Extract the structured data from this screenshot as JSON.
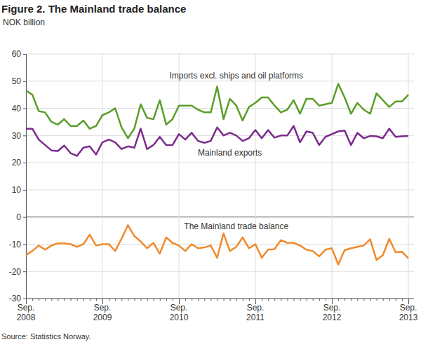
{
  "chart_data": {
    "type": "line",
    "title": "Figure 2. The Mainland trade balance",
    "y_label": "NOK billion",
    "source": "Source: Statistics Norway.",
    "categories": [
      "Sep. 2008",
      null,
      null,
      null,
      null,
      null,
      null,
      null,
      null,
      null,
      null,
      null,
      "Sep. 2009",
      null,
      null,
      null,
      null,
      null,
      null,
      null,
      null,
      null,
      null,
      null,
      "Sep. 2010",
      null,
      null,
      null,
      null,
      null,
      null,
      null,
      null,
      null,
      null,
      null,
      "Sep. 2011",
      null,
      null,
      null,
      null,
      null,
      null,
      null,
      null,
      null,
      null,
      null,
      "Sep. 2012",
      null,
      null,
      null,
      null,
      null,
      null,
      null,
      null,
      null,
      null,
      null,
      "Sep. 2013"
    ],
    "series": [
      {
        "name": "Imports excl. ships and oil platforms",
        "color": "#5a9e2a",
        "values": [
          46.5,
          45,
          39,
          38.5,
          35,
          34,
          36,
          33.5,
          33.5,
          35.5,
          32.5,
          33.5,
          37.5,
          38.5,
          40,
          33,
          29,
          32.5,
          41.5,
          36.5,
          36,
          43,
          34,
          36,
          41,
          41,
          41,
          39.5,
          38.5,
          38.5,
          48,
          36,
          43.5,
          41,
          35.5,
          40.5,
          42,
          44,
          44,
          41,
          38.5,
          39.5,
          43,
          38,
          43.5,
          43.5,
          41,
          41.5,
          42,
          49,
          44,
          38,
          42,
          39.5,
          38,
          45.5,
          43,
          40.5,
          42.5,
          42.5,
          45
        ]
      },
      {
        "name": "Mainland exports",
        "color": "#7b2a8c",
        "values": [
          32.5,
          32.5,
          28.5,
          26.5,
          24.5,
          24.3,
          26.3,
          23.5,
          22.5,
          25.5,
          26,
          23,
          27.5,
          28.5,
          27.5,
          25,
          26,
          25.5,
          32.5,
          25,
          26.5,
          29.5,
          26.5,
          26.5,
          30.5,
          28.5,
          31,
          28,
          27.3,
          28,
          33,
          30,
          31,
          30,
          28,
          29,
          32,
          29,
          32,
          29.2,
          30,
          30,
          33.5,
          27.5,
          31.5,
          31,
          26.5,
          29.5,
          30.5,
          31.5,
          31.8,
          26.5,
          31,
          29,
          29.8,
          29.7,
          29,
          32.5,
          29.5,
          29.7,
          29.8
        ]
      },
      {
        "name": "The Mainland trade balance",
        "color": "#f08a2c",
        "values": [
          -14,
          -12.5,
          -10.5,
          -12,
          -10.5,
          -9.7,
          -9.7,
          -10,
          -11,
          -10,
          -6.5,
          -10.5,
          -10,
          -10,
          -12.5,
          -8,
          -3,
          -7,
          -9,
          -11.5,
          -9.5,
          -13.5,
          -7.5,
          -9.5,
          -10.5,
          -12.5,
          -10,
          -11.5,
          -11.2,
          -10.5,
          -15,
          -6,
          -12.5,
          -11,
          -7.5,
          -11.5,
          -10,
          -15,
          -12,
          -11.8,
          -8.5,
          -9.5,
          -9.5,
          -10.5,
          -12,
          -12.5,
          -14.5,
          -12,
          -11.5,
          -17.5,
          -12.2,
          -11.5,
          -11,
          -10.5,
          -8.2,
          -15.8,
          -14,
          -8,
          -13,
          -12.8,
          -15.2
        ]
      }
    ],
    "annotations": [
      {
        "text": "Imports excl. ships and oil platforms",
        "x": 33,
        "y": 51
      },
      {
        "text": "Mainland exports",
        "x": 32,
        "y": 22.5
      },
      {
        "text": "The Mainland trade balance",
        "x": 33,
        "y": -4.5
      }
    ],
    "ylim": [
      -30,
      60
    ],
    "yticks": [
      -30,
      -20,
      -10,
      0,
      10,
      20,
      30,
      40,
      50,
      60
    ],
    "grid": true
  }
}
